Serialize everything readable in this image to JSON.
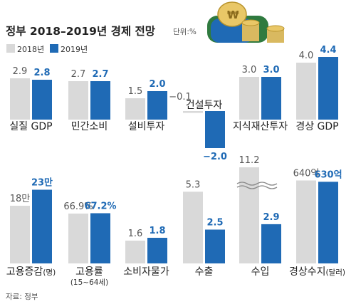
{
  "header": {
    "title": "정부 2018–2019년 경제 전망",
    "unit": "단위:%",
    "source": "자료: 정부"
  },
  "legend": [
    {
      "label": "2018년",
      "color": "#d9d9d9"
    },
    {
      "label": "2019년",
      "color": "#1f6ab5"
    }
  ],
  "chart_data": {
    "type": "bar",
    "series": [
      {
        "name": "2018년",
        "color": "#d9d9d9"
      },
      {
        "name": "2019년",
        "color": "#1f6ab5"
      }
    ],
    "groups": [
      {
        "category": "실질 GDP",
        "sub": "",
        "values": [
          2.9,
          2.8
        ],
        "labels": [
          "2.9",
          "2.8"
        ]
      },
      {
        "category": "민간소비",
        "sub": "",
        "values": [
          2.7,
          2.7
        ],
        "labels": [
          "2.7",
          "2.7"
        ]
      },
      {
        "category": "설비투자",
        "sub": "",
        "values": [
          1.5,
          2.0
        ],
        "labels": [
          "1.5",
          "2.0"
        ]
      },
      {
        "category": "건설투자",
        "sub": "",
        "values": [
          -0.1,
          -2.0
        ],
        "labels": [
          "−0.1",
          "−2.0"
        ]
      },
      {
        "category": "지식재산투자",
        "sub": "",
        "values": [
          3.0,
          3.0
        ],
        "labels": [
          "3.0",
          "3.0"
        ]
      },
      {
        "category": "경상 GDP",
        "sub": "",
        "values": [
          4.0,
          4.4
        ],
        "labels": [
          "4.0",
          "4.4"
        ]
      },
      {
        "category": "고용증감",
        "unit_note": "(명)",
        "sub": "",
        "values": [
          180000,
          230000
        ],
        "labels": [
          "18만",
          "23만"
        ]
      },
      {
        "category": "고용률",
        "sub": "(15~64세)",
        "values": [
          66.9,
          67.2
        ],
        "labels": [
          "66.9%",
          "67.2%"
        ]
      },
      {
        "category": "소비자물가",
        "sub": "",
        "values": [
          1.6,
          1.8
        ],
        "labels": [
          "1.6",
          "1.8"
        ]
      },
      {
        "category": "수출",
        "sub": "",
        "values": [
          5.3,
          2.5
        ],
        "labels": [
          "5.3",
          "2.5"
        ]
      },
      {
        "category": "수입",
        "sub": "",
        "values": [
          11.2,
          2.9
        ],
        "labels": [
          "11.2",
          "2.9"
        ],
        "axis_break": true
      },
      {
        "category": "경상수지",
        "unit_note": "(달러)",
        "sub": "",
        "values": [
          64000000000,
          63000000000
        ],
        "labels": [
          "640억",
          "630억"
        ]
      }
    ]
  }
}
